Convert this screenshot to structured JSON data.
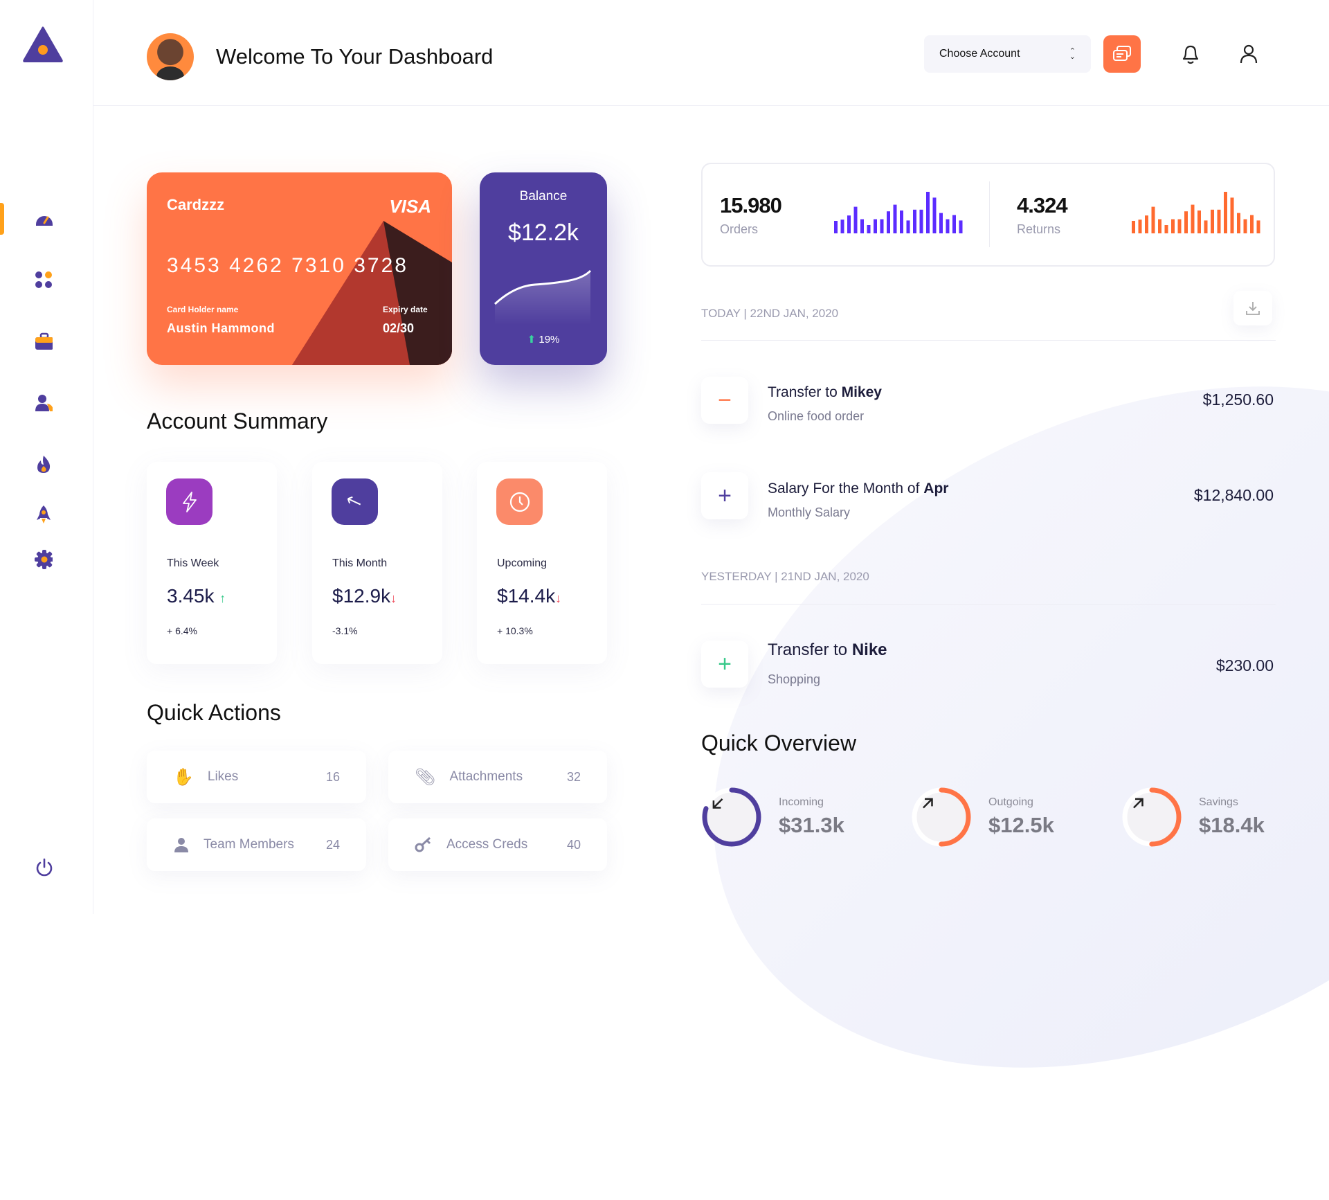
{
  "header": {
    "title": "Welcome To Your Dashboard",
    "account_select": "Choose Account"
  },
  "colors": {
    "primary": "#4f3e9e",
    "accent": "#ff7446",
    "purple": "#9b3cc0",
    "bars_orders": "#5b2cff",
    "bars_returns": "#ff6a2f"
  },
  "sidebar": {
    "items": [
      {
        "icon": "dashboard-gauge-icon",
        "active": true
      },
      {
        "icon": "apps-grid-icon"
      },
      {
        "icon": "briefcase-icon"
      },
      {
        "icon": "users-icon"
      },
      {
        "icon": "fire-icon"
      },
      {
        "icon": "rocket-icon"
      },
      {
        "icon": "settings-gear-icon"
      }
    ],
    "logout_icon": "power-icon"
  },
  "credit_card": {
    "name": "Cardzzz",
    "brand": "VISA",
    "number": "3453 4262 7310 3728",
    "holder_label": "Card Holder name",
    "holder": "Austin Hammond",
    "expiry_label": "Expiry date",
    "expiry": "02/30"
  },
  "balance": {
    "label": "Balance",
    "value": "$12.2k",
    "change": "19%"
  },
  "account_summary": {
    "title": "Account Summary",
    "cards": [
      {
        "label": "This Week",
        "value": "3.45k",
        "trend": "up",
        "change": "+ 6.4%",
        "icon": "lightning-icon"
      },
      {
        "label": "This Month",
        "value": "$12.9k",
        "trend": "down",
        "change": "-3.1%",
        "icon": "arrow-up-left-icon"
      },
      {
        "label": "Upcoming",
        "value": "$14.4k",
        "trend": "down",
        "change": "+ 10.3%",
        "icon": "clock-icon"
      }
    ]
  },
  "quick_actions": {
    "title": "Quick Actions",
    "items": [
      {
        "label": "Likes",
        "count": "16",
        "icon": "hand-wave-icon"
      },
      {
        "label": "Attachments",
        "count": "32",
        "icon": "paperclip-icon"
      },
      {
        "label": "Team Members",
        "count": "24",
        "icon": "user-icon"
      },
      {
        "label": "Access Creds",
        "count": "40",
        "icon": "key-icon"
      }
    ]
  },
  "stats": {
    "orders": {
      "value": "15.980",
      "label": "Orders"
    },
    "returns": {
      "value": "4.324",
      "label": "Returns"
    }
  },
  "chart_data": [
    {
      "type": "bar",
      "series": [
        {
          "values": [
            0.3,
            0.33,
            0.43,
            0.64,
            0.34,
            0.2,
            0.34,
            0.34,
            0.53,
            0.69,
            0.55,
            0.31,
            0.57,
            0.57,
            1.0,
            0.86,
            0.49,
            0.34,
            0.44,
            0.31
          ]
        }
      ]
    },
    {
      "type": "bar",
      "series": [
        {
          "values": [
            0.3,
            0.33,
            0.43,
            0.64,
            0.34,
            0.2,
            0.34,
            0.34,
            0.53,
            0.69,
            0.55,
            0.31,
            0.57,
            0.57,
            1.0,
            0.86,
            0.49,
            0.34,
            0.44,
            0.31
          ]
        }
      ]
    }
  ],
  "transactions": {
    "groups": [
      {
        "header": "TODAY | 22ND JAN, 2020",
        "items": [
          {
            "type": "minus",
            "title_prefix": "Transfer to ",
            "title_bold": "Mikey",
            "subtitle": "Online food order",
            "amount": "$1,250.60"
          },
          {
            "type": "plus",
            "title_prefix": "Salary For the Month of ",
            "title_bold": "Apr",
            "subtitle": "Monthly Salary",
            "amount": "$12,840.00"
          }
        ]
      },
      {
        "header": "YESTERDAY | 21ND JAN, 2020",
        "items": [
          {
            "type": "plus-green",
            "title_prefix": "Transfer to ",
            "title_bold": "Nike",
            "subtitle": "Shopping",
            "amount": "$230.00"
          }
        ]
      }
    ]
  },
  "quick_overview": {
    "title": "Quick Overview",
    "items": [
      {
        "label": "Incoming",
        "value": "$31.3k",
        "progress": 0.8,
        "color": "#4f3e9e",
        "icon": "arrow-down-left-icon"
      },
      {
        "label": "Outgoing",
        "value": "$12.5k",
        "progress": 0.5,
        "color": "#ff7446",
        "icon": "arrow-up-right-icon"
      },
      {
        "label": "Savings",
        "value": "$18.4k",
        "progress": 0.5,
        "color": "#ff7446",
        "icon": "arrow-up-right-icon"
      }
    ]
  }
}
